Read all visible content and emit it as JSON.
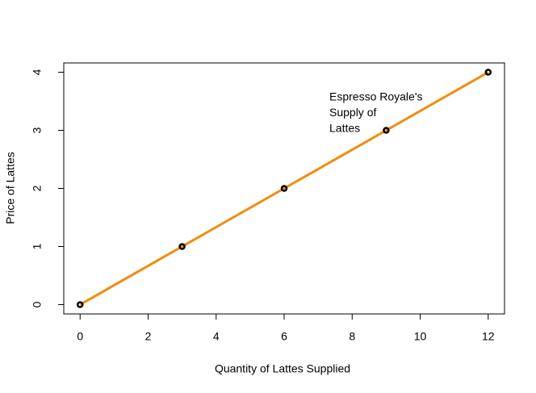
{
  "chart_data": {
    "type": "line",
    "xlabel": "Quantity of Lattes Supplied",
    "ylabel": "Price of Lattes",
    "annotation": [
      "Espresso Royale's",
      "Supply of",
      "Lattes"
    ],
    "x": [
      0,
      3,
      6,
      9,
      12
    ],
    "values": [
      0,
      1,
      2,
      3,
      4
    ],
    "color": "#f28c0f",
    "marker_color": "#000000",
    "xlim": [
      -0.48,
      12.48
    ],
    "xticks": [
      0,
      2,
      4,
      6,
      8,
      10,
      12
    ],
    "ylim": [
      -0.16,
      4.16
    ],
    "yticks": [
      0,
      1,
      2,
      3,
      4
    ],
    "grid": false
  }
}
